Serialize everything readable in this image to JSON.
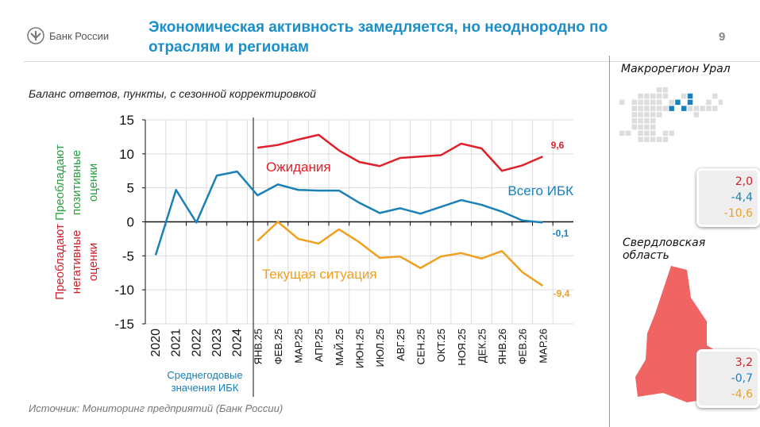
{
  "header": {
    "logo_text": "Банк России",
    "title": "Экономическая активность замедляется, но неоднородно по отраслям и регионам",
    "page_number": "9"
  },
  "subtitle": "Баланс ответов, пункты, с сезонной корректировкой",
  "source": "Источник: Мониторинг предприятий (Банк России)",
  "side": {
    "macro_title": "Макрорегион Урал",
    "macro_values": [
      "2,0",
      "-4,4",
      "-10,6"
    ],
    "region_title": "Свердловская область",
    "region_values": [
      "3,2",
      "-0,7",
      "-4,6"
    ]
  },
  "colors": {
    "expectations": "#e0202a",
    "ibk": "#1a80b8",
    "current": "#f0a020",
    "positive": "#2aa040",
    "negative": "#d0202a"
  },
  "chart_data": {
    "type": "line",
    "ylim": [
      -15,
      15
    ],
    "yticks": [
      15,
      10,
      5,
      0,
      -5,
      -10,
      -15
    ],
    "ytick_labels": [
      "15",
      "10",
      "5",
      "0",
      "-5",
      "-10",
      "-15"
    ],
    "grid": true,
    "categories": [
      "2020",
      "2021",
      "2022",
      "2023",
      "2024",
      "ЯНВ.25",
      "ФЕВ.25",
      "МАР.25",
      "АПР.25",
      "МАЙ.25",
      "ИЮН.25",
      "ИЮЛ.25",
      "АВГ.25",
      "СЕН.25",
      "ОКТ.25",
      "НОЯ.25",
      "ДЕК.25",
      "ЯНВ.26",
      "ФЕВ.26",
      "МАР.26"
    ],
    "annual_label": "Среднегодовые значения ИБК",
    "positive_label": "Преобладают позитивные оценки",
    "negative_label": "Преобладают негативные оценки",
    "series": [
      {
        "name": "Ожидания",
        "color": "#e0202a",
        "end_label": "9,6",
        "values": [
          null,
          null,
          null,
          null,
          null,
          10.9,
          11.3,
          12.1,
          12.8,
          10.5,
          8.8,
          8.2,
          9.4,
          9.6,
          9.8,
          11.5,
          10.8,
          7.5,
          8.3,
          9.6
        ]
      },
      {
        "name": "Всего ИБК",
        "color": "#1a80b8",
        "end_label": "-0,1",
        "values": [
          -4.9,
          4.7,
          -0.1,
          6.8,
          7.4,
          3.9,
          5.5,
          4.7,
          4.6,
          4.6,
          2.8,
          1.3,
          2.0,
          1.2,
          2.2,
          3.2,
          2.5,
          1.5,
          0.2,
          -0.1
        ]
      },
      {
        "name": "Текущая ситуация",
        "color": "#f0a020",
        "end_label": "-9,4",
        "values": [
          null,
          null,
          null,
          null,
          null,
          -2.8,
          0.0,
          -2.5,
          -3.2,
          -1.1,
          -3.0,
          -5.3,
          -5.1,
          -6.8,
          -5.1,
          -4.6,
          -5.4,
          -4.3,
          -7.4,
          -9.4
        ]
      }
    ]
  }
}
